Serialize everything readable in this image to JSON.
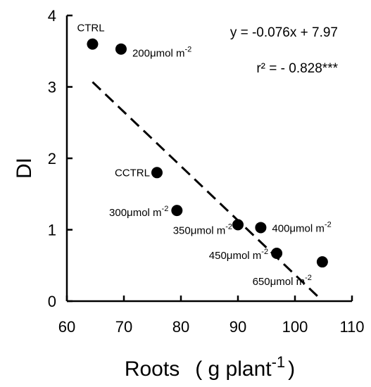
{
  "chart_data": {
    "type": "scatter",
    "xlabel": "Roots",
    "xlabel_unit": "( g plant",
    "xlabel_unit_sup": "-1",
    "xlabel_unit_close": ")",
    "ylabel": "DI",
    "xlim": [
      60,
      110
    ],
    "ylim": [
      0,
      4
    ],
    "xticks": [
      60,
      70,
      80,
      90,
      100,
      110
    ],
    "yticks": [
      0,
      1,
      2,
      3,
      4
    ],
    "grid": false,
    "points": [
      {
        "label": "CTRL",
        "x": 64.5,
        "y": 3.6
      },
      {
        "label": "200μmol m",
        "sup": "-2",
        "x": 69.5,
        "y": 3.53
      },
      {
        "label": "CCTRL",
        "x": 75.8,
        "y": 1.8
      },
      {
        "label": "300μmol m",
        "sup": "-2",
        "x": 79.3,
        "y": 1.27
      },
      {
        "label": "350μmol m",
        "sup": "-2",
        "x": 90.0,
        "y": 1.07
      },
      {
        "label": "400μmol m",
        "sup": "-2",
        "x": 94.0,
        "y": 1.03
      },
      {
        "label": "450μmol m",
        "sup": "-2",
        "x": 96.8,
        "y": 0.67
      },
      {
        "label": "650μmol m",
        "sup": "-2",
        "x": 104.8,
        "y": 0.55
      }
    ],
    "trendline": {
      "slope": -0.076,
      "intercept": 7.97,
      "x_range": [
        64.5,
        104.5
      ]
    },
    "equation": "y = -0.076x + 7.97",
    "r2": "r² = - 0.828***"
  }
}
